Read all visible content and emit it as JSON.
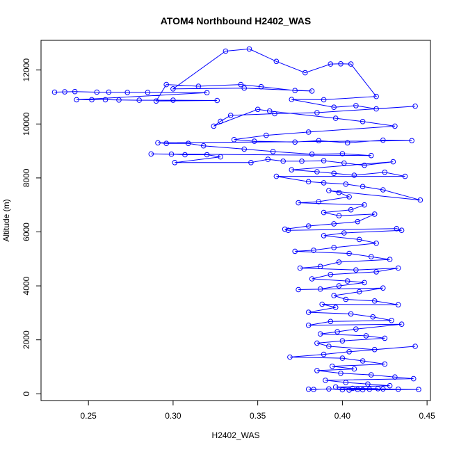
{
  "chart_data": {
    "type": "scatter",
    "title": "ATOM4 Northbound H2402_WAS",
    "xlabel": "H2402_WAS",
    "ylabel": "Altitude (m)",
    "xlim": [
      0.222,
      0.452
    ],
    "ylim": [
      -250,
      13100
    ],
    "x_ticks": [
      0.25,
      0.3,
      0.35,
      0.4,
      0.45
    ],
    "x_tick_labels": [
      "0.25",
      "0.30",
      "0.35",
      "0.40",
      "0.45"
    ],
    "y_ticks": [
      0,
      2000,
      4000,
      6000,
      8000,
      10000,
      12000
    ],
    "y_tick_labels": [
      "0",
      "2000",
      "4000",
      "6000",
      "8000",
      "10000",
      "12000"
    ],
    "grid": false,
    "legend": "none",
    "marker": "open-circle",
    "connected": true,
    "color": "#0000ff",
    "series": [
      {
        "points": [
          [
            0.23,
            11180
          ],
          [
            0.236,
            11190
          ],
          [
            0.242,
            11200
          ],
          [
            0.255,
            11180
          ],
          [
            0.262,
            11180
          ],
          [
            0.273,
            11170
          ],
          [
            0.285,
            11170
          ],
          [
            0.32,
            11160
          ],
          [
            0.243,
            10900
          ],
          [
            0.252,
            10900
          ],
          [
            0.26,
            10900
          ],
          [
            0.268,
            10890
          ],
          [
            0.28,
            10880
          ],
          [
            0.3,
            10880
          ],
          [
            0.326,
            10870
          ],
          [
            0.29,
            10850
          ],
          [
            0.296,
            11460
          ],
          [
            0.315,
            11400
          ],
          [
            0.34,
            11460
          ],
          [
            0.352,
            11380
          ],
          [
            0.372,
            11240
          ],
          [
            0.382,
            11220
          ],
          [
            0.342,
            11330
          ],
          [
            0.3,
            11300
          ],
          [
            0.331,
            12700
          ],
          [
            0.345,
            12780
          ],
          [
            0.361,
            12320
          ],
          [
            0.378,
            11900
          ],
          [
            0.393,
            12220
          ],
          [
            0.399,
            12230
          ],
          [
            0.405,
            12220
          ],
          [
            0.42,
            11020
          ],
          [
            0.389,
            10900
          ],
          [
            0.37,
            10910
          ],
          [
            0.395,
            10620
          ],
          [
            0.408,
            10680
          ],
          [
            0.42,
            10560
          ],
          [
            0.443,
            10660
          ],
          [
            0.385,
            10420
          ],
          [
            0.36,
            10380
          ],
          [
            0.334,
            10320
          ],
          [
            0.328,
            10100
          ],
          [
            0.324,
            9920
          ],
          [
            0.35,
            10540
          ],
          [
            0.357,
            10480
          ],
          [
            0.396,
            10210
          ],
          [
            0.412,
            10090
          ],
          [
            0.431,
            9920
          ],
          [
            0.38,
            9700
          ],
          [
            0.355,
            9580
          ],
          [
            0.336,
            9420
          ],
          [
            0.348,
            9360
          ],
          [
            0.372,
            9330
          ],
          [
            0.386,
            9380
          ],
          [
            0.403,
            9300
          ],
          [
            0.424,
            9400
          ],
          [
            0.441,
            9380
          ],
          [
            0.291,
            9300
          ],
          [
            0.296,
            9280
          ],
          [
            0.309,
            9280
          ],
          [
            0.318,
            9190
          ],
          [
            0.342,
            9070
          ],
          [
            0.359,
            8980
          ],
          [
            0.382,
            8880
          ],
          [
            0.4,
            8900
          ],
          [
            0.417,
            8830
          ],
          [
            0.287,
            8890
          ],
          [
            0.299,
            8880
          ],
          [
            0.307,
            8860
          ],
          [
            0.32,
            8860
          ],
          [
            0.328,
            8780
          ],
          [
            0.301,
            8570
          ],
          [
            0.346,
            8570
          ],
          [
            0.356,
            8690
          ],
          [
            0.365,
            8620
          ],
          [
            0.376,
            8620
          ],
          [
            0.389,
            8640
          ],
          [
            0.401,
            8550
          ],
          [
            0.413,
            8470
          ],
          [
            0.43,
            8600
          ],
          [
            0.37,
            8300
          ],
          [
            0.385,
            8230
          ],
          [
            0.395,
            8170
          ],
          [
            0.407,
            8100
          ],
          [
            0.425,
            8210
          ],
          [
            0.437,
            8060
          ],
          [
            0.361,
            8060
          ],
          [
            0.38,
            7860
          ],
          [
            0.389,
            7820
          ],
          [
            0.402,
            7770
          ],
          [
            0.412,
            7680
          ],
          [
            0.424,
            7560
          ],
          [
            0.446,
            7180
          ],
          [
            0.392,
            7530
          ],
          [
            0.398,
            7460
          ],
          [
            0.404,
            7300
          ],
          [
            0.386,
            7120
          ],
          [
            0.374,
            7080
          ],
          [
            0.413,
            7000
          ],
          [
            0.405,
            6820
          ],
          [
            0.389,
            6720
          ],
          [
            0.398,
            6600
          ],
          [
            0.419,
            6660
          ],
          [
            0.409,
            6380
          ],
          [
            0.395,
            6300
          ],
          [
            0.38,
            6220
          ],
          [
            0.366,
            6100
          ],
          [
            0.368,
            6060
          ],
          [
            0.432,
            6120
          ],
          [
            0.435,
            6060
          ],
          [
            0.401,
            5960
          ],
          [
            0.389,
            5860
          ],
          [
            0.41,
            5720
          ],
          [
            0.42,
            5580
          ],
          [
            0.395,
            5420
          ],
          [
            0.383,
            5320
          ],
          [
            0.372,
            5280
          ],
          [
            0.404,
            5200
          ],
          [
            0.417,
            5080
          ],
          [
            0.428,
            4980
          ],
          [
            0.398,
            4880
          ],
          [
            0.387,
            4720
          ],
          [
            0.375,
            4660
          ],
          [
            0.408,
            4590
          ],
          [
            0.433,
            4660
          ],
          [
            0.42,
            4520
          ],
          [
            0.393,
            4420
          ],
          [
            0.382,
            4260
          ],
          [
            0.403,
            4180
          ],
          [
            0.413,
            4120
          ],
          [
            0.398,
            4000
          ],
          [
            0.387,
            3880
          ],
          [
            0.374,
            3860
          ],
          [
            0.424,
            3920
          ],
          [
            0.41,
            3780
          ],
          [
            0.395,
            3640
          ],
          [
            0.402,
            3500
          ],
          [
            0.419,
            3440
          ],
          [
            0.433,
            3300
          ],
          [
            0.388,
            3320
          ],
          [
            0.396,
            3200
          ],
          [
            0.38,
            3020
          ],
          [
            0.405,
            2960
          ],
          [
            0.418,
            2850
          ],
          [
            0.429,
            2720
          ],
          [
            0.393,
            2680
          ],
          [
            0.38,
            2540
          ],
          [
            0.435,
            2580
          ],
          [
            0.408,
            2400
          ],
          [
            0.397,
            2300
          ],
          [
            0.387,
            2220
          ],
          [
            0.414,
            2150
          ],
          [
            0.425,
            2060
          ],
          [
            0.4,
            1960
          ],
          [
            0.385,
            1880
          ],
          [
            0.392,
            1760
          ],
          [
            0.419,
            1640
          ],
          [
            0.443,
            1760
          ],
          [
            0.404,
            1560
          ],
          [
            0.389,
            1460
          ],
          [
            0.369,
            1360
          ],
          [
            0.4,
            1320
          ],
          [
            0.412,
            1220
          ],
          [
            0.425,
            1100
          ],
          [
            0.394,
            1020
          ],
          [
            0.407,
            920
          ],
          [
            0.385,
            860
          ],
          [
            0.399,
            760
          ],
          [
            0.417,
            700
          ],
          [
            0.431,
            620
          ],
          [
            0.442,
            560
          ],
          [
            0.39,
            500
          ],
          [
            0.402,
            420
          ],
          [
            0.415,
            360
          ],
          [
            0.428,
            300
          ],
          [
            0.396,
            250
          ],
          [
            0.406,
            200
          ],
          [
            0.421,
            190
          ],
          [
            0.38,
            170
          ],
          [
            0.383,
            160
          ],
          [
            0.392,
            180
          ],
          [
            0.4,
            150
          ],
          [
            0.409,
            160
          ],
          [
            0.416,
            170
          ],
          [
            0.424,
            180
          ],
          [
            0.433,
            170
          ],
          [
            0.445,
            160
          ],
          [
            0.412,
            150
          ],
          [
            0.404,
            140
          ]
        ]
      }
    ]
  }
}
